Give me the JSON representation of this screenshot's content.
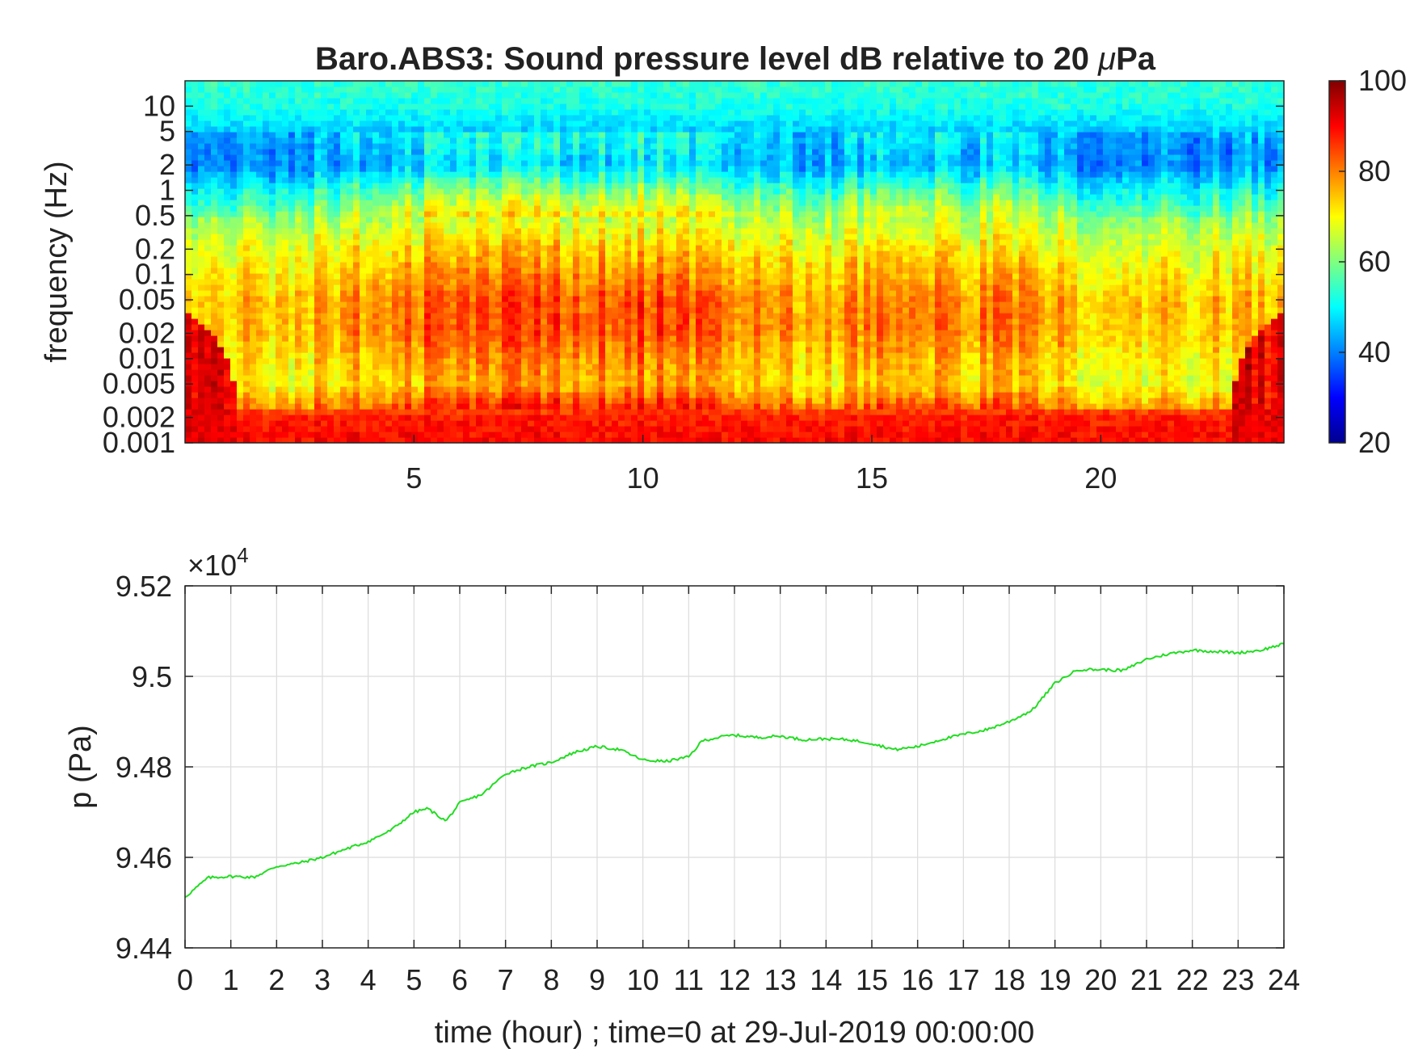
{
  "chart_data": [
    {
      "type": "heatmap",
      "title": "Baro.ABS3: Sound pressure level dB relative to 20 μPa",
      "title_prefix": "Baro.ABS3: Sound pressure level dB relative to 20 ",
      "title_mu": "μ",
      "title_suffix": "Pa",
      "xlabel": "",
      "ylabel": "frequency (Hz)",
      "xlim": [
        0,
        24
      ],
      "x_ticks": [
        5,
        10,
        15,
        20
      ],
      "y_scale": "log",
      "ylim": [
        0.001,
        20
      ],
      "y_ticks": [
        0.001,
        0.002,
        0.005,
        0.01,
        0.02,
        0.05,
        0.1,
        0.2,
        0.5,
        1,
        2,
        5,
        10
      ],
      "y_tick_labels": [
        "0.001",
        "0.002",
        "0.005",
        "0.01",
        "0.02",
        "0.05",
        "0.1",
        "0.2",
        "0.5",
        "1",
        "2",
        "5",
        "10"
      ],
      "colormap": "jet",
      "clim": [
        20,
        100
      ],
      "colorbar_ticks": [
        20,
        40,
        60,
        80,
        100
      ],
      "colorbar_tick_labels": [
        "20",
        "40",
        "60",
        "80",
        "100"
      ],
      "band_frequencies_hz": [
        0.001,
        0.002,
        0.005,
        0.01,
        0.02,
        0.05,
        0.1,
        0.2,
        0.5,
        1,
        2,
        5,
        10,
        20
      ],
      "band_levels_db": [
        90,
        88,
        74,
        76,
        80,
        80,
        76,
        72,
        64,
        54,
        42,
        46,
        52,
        54
      ],
      "activity_profile": {
        "hours": [
          0,
          2,
          3,
          4,
          5,
          6,
          7,
          8,
          9,
          10,
          11,
          11.5,
          12,
          13,
          14,
          15,
          16,
          17,
          18,
          19,
          20,
          21,
          22,
          23,
          24
        ],
        "scale": [
          0.35,
          0.45,
          0.6,
          0.7,
          0.85,
          1.0,
          0.95,
          1.0,
          0.95,
          1.0,
          1.0,
          0.95,
          0.7,
          0.65,
          0.6,
          0.8,
          0.85,
          0.65,
          0.8,
          0.55,
          0.5,
          0.45,
          0.45,
          0.5,
          0.55
        ]
      }
    },
    {
      "type": "line",
      "xlabel": "time (hour) ; time=0 at 29-Jul-2019 00:00:00",
      "ylabel": "p (Pa)",
      "y_exponent_label": "×10",
      "y_exponent_power": "4",
      "xlim": [
        0,
        24
      ],
      "ylim": [
        94400,
        95200
      ],
      "x_ticks": [
        0,
        1,
        2,
        3,
        4,
        5,
        6,
        7,
        8,
        9,
        10,
        11,
        12,
        13,
        14,
        15,
        16,
        17,
        18,
        19,
        20,
        21,
        22,
        23,
        24
      ],
      "x_tick_labels": [
        "0",
        "1",
        "2",
        "3",
        "4",
        "5",
        "6",
        "7",
        "8",
        "9",
        "10",
        "11",
        "12",
        "13",
        "14",
        "15",
        "16",
        "17",
        "18",
        "19",
        "20",
        "21",
        "22",
        "23",
        "24"
      ],
      "y_ticks": [
        94400,
        94600,
        94800,
        95000,
        95200
      ],
      "y_tick_labels": [
        "9.44",
        "9.46",
        "9.48",
        "9.5",
        "9.52"
      ],
      "grid": true,
      "color": "#22dd22",
      "x": [
        0,
        0.5,
        1,
        1.5,
        2,
        2.5,
        3,
        3.5,
        4,
        4.5,
        5,
        5.3,
        5.7,
        6,
        6.5,
        7,
        7.5,
        8,
        8.5,
        9,
        9.5,
        10,
        10.5,
        11,
        11.3,
        11.8,
        12,
        12.5,
        13,
        13.5,
        14,
        14.5,
        15,
        15.5,
        16,
        16.5,
        17,
        17.5,
        18,
        18.5,
        19,
        19.5,
        20,
        20.5,
        21,
        21.5,
        22,
        22.5,
        23,
        23.5,
        24
      ],
      "y": [
        94512,
        94555,
        94558,
        94556,
        94580,
        94588,
        94600,
        94618,
        94635,
        94660,
        94700,
        94708,
        94680,
        94720,
        94740,
        94785,
        94800,
        94810,
        94832,
        94845,
        94838,
        94815,
        94812,
        94822,
        94858,
        94868,
        94870,
        94865,
        94868,
        94860,
        94862,
        94860,
        94852,
        94838,
        94845,
        94860,
        94872,
        94882,
        94900,
        94925,
        94985,
        95015,
        95015,
        95013,
        95038,
        95050,
        95058,
        95055,
        95052,
        95058,
        95072
      ]
    }
  ]
}
